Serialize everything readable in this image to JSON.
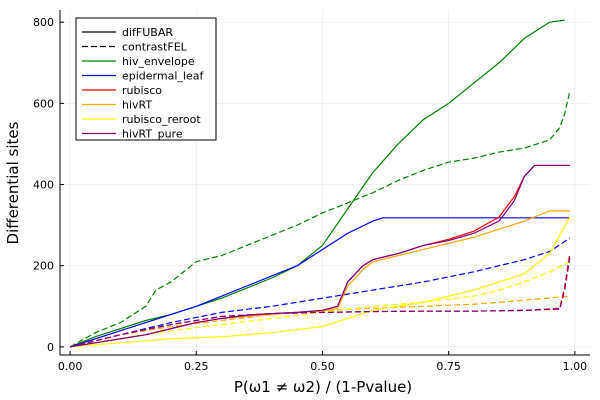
{
  "chart_data": {
    "type": "line",
    "xlabel": "P(ω1 ≠ ω2) / (1-Pvalue)",
    "ylabel": "Differential sites",
    "xlim": [
      -0.02,
      1.03
    ],
    "ylim": [
      -20,
      830
    ],
    "xticks": [
      0.0,
      0.25,
      0.5,
      0.75,
      1.0
    ],
    "xtick_labels": [
      "0.00",
      "0.25",
      "0.50",
      "0.75",
      "1.00"
    ],
    "yticks": [
      0,
      200,
      400,
      600,
      800
    ],
    "ytick_labels": [
      "0",
      "200",
      "400",
      "600",
      "800"
    ],
    "grid": true,
    "legend_position": "top-left",
    "legend": [
      {
        "label": "difFUBAR",
        "color": "#000000",
        "dash": "solid"
      },
      {
        "label": "contrastFEL",
        "color": "#000000",
        "dash": "dashed"
      },
      {
        "label": "hiv_envelope",
        "color": "#008000",
        "dash": "solid"
      },
      {
        "label": "epidermal_leaf",
        "color": "#0000ff",
        "dash": "solid"
      },
      {
        "label": "rubisco",
        "color": "#ff0000",
        "dash": "solid"
      },
      {
        "label": "hivRT",
        "color": "#ffa500",
        "dash": "solid"
      },
      {
        "label": "rubisco_reroot",
        "color": "#ffff00",
        "dash": "solid"
      },
      {
        "label": "hivRT_pure",
        "color": "#800080",
        "dash": "solid"
      }
    ],
    "series": [
      {
        "dataset": "hiv_envelope",
        "method": "difFUBAR",
        "color": "#008000",
        "dash": "solid",
        "x": [
          0.0,
          0.05,
          0.1,
          0.15,
          0.2,
          0.25,
          0.3,
          0.35,
          0.4,
          0.45,
          0.5,
          0.55,
          0.6,
          0.65,
          0.7,
          0.75,
          0.8,
          0.85,
          0.9,
          0.95,
          0.98
        ],
        "y": [
          0,
          25,
          45,
          65,
          80,
          100,
          120,
          145,
          170,
          200,
          250,
          340,
          430,
          500,
          560,
          600,
          650,
          700,
          760,
          800,
          805
        ]
      },
      {
        "dataset": "hiv_envelope",
        "method": "contrastFEL",
        "color": "#008000",
        "dash": "dashed",
        "x": [
          0.0,
          0.05,
          0.1,
          0.15,
          0.17,
          0.2,
          0.25,
          0.3,
          0.37,
          0.4,
          0.45,
          0.5,
          0.55,
          0.6,
          0.65,
          0.7,
          0.75,
          0.8,
          0.85,
          0.9,
          0.95,
          0.97,
          0.98,
          0.99
        ],
        "y": [
          0,
          35,
          60,
          100,
          140,
          160,
          210,
          225,
          260,
          275,
          300,
          330,
          355,
          380,
          410,
          435,
          455,
          465,
          480,
          490,
          510,
          540,
          575,
          630
        ]
      },
      {
        "dataset": "epidermal_leaf",
        "method": "difFUBAR",
        "color": "#0000ff",
        "dash": "solid",
        "x": [
          0.0,
          0.05,
          0.1,
          0.15,
          0.2,
          0.25,
          0.3,
          0.35,
          0.4,
          0.45,
          0.5,
          0.55,
          0.6,
          0.62,
          0.7,
          0.8,
          0.9,
          0.99
        ],
        "y": [
          0,
          20,
          40,
          60,
          80,
          100,
          125,
          150,
          175,
          200,
          240,
          280,
          310,
          318,
          318,
          318,
          318,
          318
        ]
      },
      {
        "dataset": "epidermal_leaf",
        "method": "contrastFEL",
        "color": "#0000ff",
        "dash": "dashed",
        "x": [
          0.0,
          0.1,
          0.2,
          0.3,
          0.4,
          0.5,
          0.6,
          0.7,
          0.8,
          0.9,
          0.95,
          0.99
        ],
        "y": [
          0,
          30,
          60,
          85,
          100,
          120,
          140,
          160,
          185,
          215,
          235,
          268
        ]
      },
      {
        "dataset": "rubisco",
        "method": "difFUBAR",
        "color": "#ff0000",
        "dash": "solid",
        "x": [
          0.0,
          0.05,
          0.1,
          0.15,
          0.2,
          0.25,
          0.3,
          0.35,
          0.4,
          0.45,
          0.5,
          0.53,
          0.55,
          0.58,
          0.6,
          0.65,
          0.7,
          0.75,
          0.8,
          0.85,
          0.88,
          0.9,
          0.92,
          0.99
        ],
        "y": [
          0,
          10,
          20,
          30,
          45,
          60,
          70,
          78,
          82,
          85,
          90,
          100,
          160,
          200,
          215,
          230,
          250,
          265,
          285,
          320,
          370,
          420,
          447,
          447
        ]
      },
      {
        "dataset": "rubisco",
        "method": "contrastFEL",
        "color": "#ff0000",
        "dash": "dashed",
        "x": [
          0.0,
          0.1,
          0.2,
          0.3,
          0.4,
          0.5,
          0.6,
          0.7,
          0.8,
          0.9,
          0.97,
          0.98,
          0.99
        ],
        "y": [
          0,
          30,
          55,
          75,
          82,
          85,
          87,
          88,
          88,
          90,
          95,
          150,
          230
        ]
      },
      {
        "dataset": "hivRT",
        "method": "difFUBAR",
        "color": "#ffa500",
        "dash": "solid",
        "x": [
          0.0,
          0.05,
          0.1,
          0.15,
          0.2,
          0.25,
          0.3,
          0.35,
          0.4,
          0.45,
          0.5,
          0.53,
          0.55,
          0.58,
          0.6,
          0.65,
          0.7,
          0.75,
          0.8,
          0.85,
          0.9,
          0.95,
          0.99
        ],
        "y": [
          0,
          10,
          20,
          30,
          45,
          60,
          70,
          75,
          80,
          85,
          88,
          95,
          150,
          190,
          210,
          225,
          240,
          255,
          270,
          290,
          310,
          335,
          335
        ]
      },
      {
        "dataset": "hivRT",
        "method": "contrastFEL",
        "color": "#ffa500",
        "dash": "dashed",
        "x": [
          0.0,
          0.1,
          0.2,
          0.3,
          0.4,
          0.5,
          0.6,
          0.7,
          0.8,
          0.9,
          0.99
        ],
        "y": [
          0,
          30,
          50,
          65,
          80,
          90,
          95,
          100,
          105,
          115,
          125
        ]
      },
      {
        "dataset": "rubisco_reroot",
        "method": "difFUBAR",
        "color": "#ffff00",
        "dash": "solid",
        "x": [
          0.0,
          0.1,
          0.2,
          0.3,
          0.4,
          0.5,
          0.55,
          0.6,
          0.7,
          0.8,
          0.9,
          0.95,
          0.99
        ],
        "y": [
          0,
          10,
          20,
          25,
          35,
          50,
          70,
          90,
          110,
          140,
          180,
          230,
          320
        ]
      },
      {
        "dataset": "rubisco_reroot",
        "method": "contrastFEL",
        "color": "#ffff00",
        "dash": "dashed",
        "x": [
          0.0,
          0.1,
          0.2,
          0.3,
          0.4,
          0.5,
          0.6,
          0.7,
          0.8,
          0.85,
          0.9,
          0.95,
          0.99
        ],
        "y": [
          0,
          20,
          40,
          55,
          70,
          85,
          100,
          110,
          125,
          140,
          160,
          185,
          210
        ]
      },
      {
        "dataset": "hivRT_pure",
        "method": "difFUBAR",
        "color": "#800080",
        "dash": "solid",
        "x": [
          0.0,
          0.05,
          0.1,
          0.15,
          0.2,
          0.25,
          0.3,
          0.35,
          0.4,
          0.45,
          0.5,
          0.53,
          0.55,
          0.58,
          0.6,
          0.65,
          0.7,
          0.75,
          0.8,
          0.85,
          0.88,
          0.9,
          0.92,
          0.99
        ],
        "y": [
          0,
          10,
          20,
          30,
          45,
          60,
          70,
          78,
          82,
          85,
          90,
          100,
          160,
          200,
          215,
          230,
          250,
          262,
          280,
          310,
          360,
          420,
          447,
          447
        ]
      },
      {
        "dataset": "hivRT_pure",
        "method": "contrastFEL",
        "color": "#800080",
        "dash": "dashed",
        "x": [
          0.0,
          0.1,
          0.2,
          0.3,
          0.4,
          0.5,
          0.6,
          0.7,
          0.8,
          0.9,
          0.97,
          0.98,
          0.99
        ],
        "y": [
          0,
          30,
          55,
          75,
          82,
          85,
          87,
          88,
          88,
          90,
          93,
          140,
          220
        ]
      }
    ]
  }
}
